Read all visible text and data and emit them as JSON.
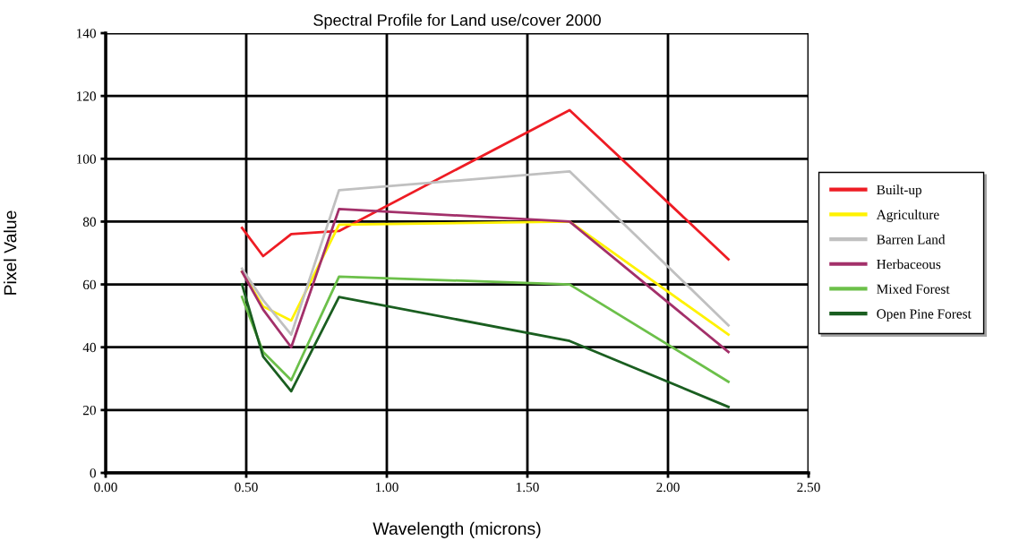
{
  "chart_data": {
    "type": "line",
    "title": "Spectral Profile for Land use/cover 2000",
    "xlabel": "Wavelength (microns)",
    "ylabel": "Pixel Value",
    "x": [
      0.485,
      0.56,
      0.66,
      0.83,
      1.65,
      2.215
    ],
    "series": [
      {
        "name": "Built-up",
        "color": "#ee1c24",
        "values": [
          78,
          69,
          76,
          77,
          115.5,
          68
        ]
      },
      {
        "name": "Agriculture",
        "color": "#fff200",
        "values": [
          64,
          53,
          48.5,
          79,
          80,
          44
        ]
      },
      {
        "name": "Barren Land",
        "color": "#c0c0c0",
        "values": [
          65,
          55,
          44,
          90,
          96,
          47
        ]
      },
      {
        "name": "Herbaceous",
        "color": "#a3306a",
        "values": [
          64,
          52,
          40,
          84,
          80,
          38.5
        ]
      },
      {
        "name": "Mixed Forest",
        "color": "#6cc04a",
        "values": [
          56,
          38.5,
          29.5,
          62.5,
          60,
          29
        ]
      },
      {
        "name": "Open Pine Forest",
        "color": "#1a5e20",
        "values": [
          60,
          37,
          26,
          56,
          42,
          21
        ]
      }
    ],
    "xlim": [
      0,
      2.5
    ],
    "xticks": [
      {
        "value": 0,
        "label": "0.00"
      },
      {
        "value": 0.5,
        "label": "0.50"
      },
      {
        "value": 1,
        "label": "1.00"
      },
      {
        "value": 1.5,
        "label": "1.50"
      },
      {
        "value": 2,
        "label": "2.00"
      },
      {
        "value": 2.5,
        "label": "2.50"
      }
    ],
    "ylim": [
      0,
      140
    ],
    "yticks": [
      0,
      20,
      40,
      60,
      80,
      100,
      120,
      140
    ],
    "grid": true,
    "legend": "right",
    "marker": "none",
    "line_style": "solid"
  }
}
